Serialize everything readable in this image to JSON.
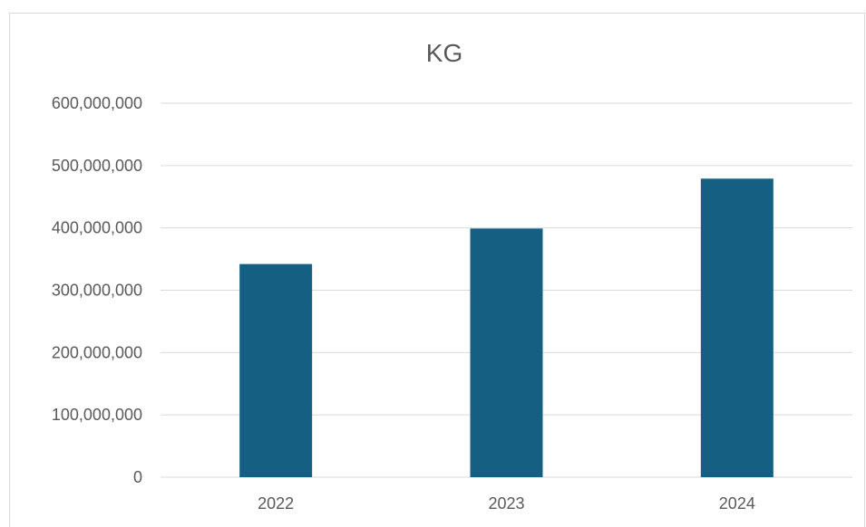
{
  "chart_data": {
    "type": "bar",
    "title": "KG",
    "categories": [
      "2022",
      "2023",
      "2024"
    ],
    "series": [
      {
        "values": [
          342000000,
          399000000,
          479000000
        ]
      }
    ],
    "ylim": [
      0,
      600000000
    ],
    "yticks": [
      0,
      100000000,
      200000000,
      300000000,
      400000000,
      500000000,
      600000000
    ],
    "ytick_labels": [
      "0",
      "100,000,000",
      "200,000,000",
      "300,000,000",
      "400,000,000",
      "500,000,000",
      "600,000,000"
    ],
    "grid": true,
    "legend": "none",
    "bar_color": "#156082",
    "grid_color": "#d9d9d9",
    "text_color": "#595959"
  }
}
